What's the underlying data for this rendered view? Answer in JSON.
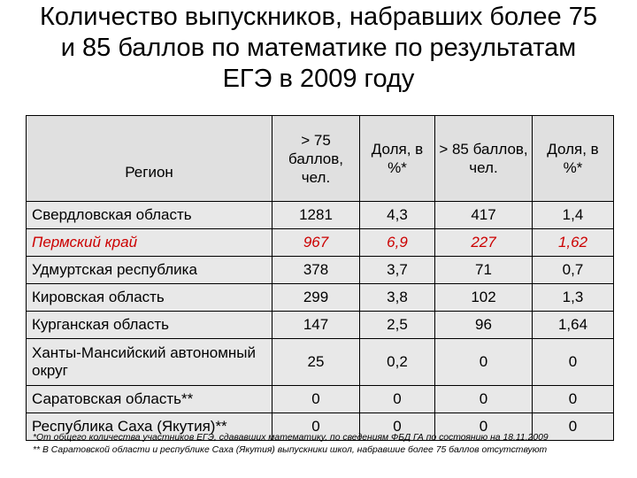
{
  "title": {
    "line1": "Количество выпускников, набравших более 75",
    "line2": "и 85 баллов по математике по результатам",
    "line3": "ЕГЭ в 2009 году"
  },
  "table": {
    "headers": {
      "region": "Регион",
      "over75": "> 75 баллов, чел.",
      "share75": "Доля, в %*",
      "over85": "> 85 баллов, чел.",
      "share85": "Доля, в %*"
    },
    "rows": [
      {
        "region": "Свердловская область",
        "over75": "1281",
        "share75": "4,3",
        "over85": "417",
        "share85": "1,4"
      },
      {
        "region": "Пермский край",
        "over75": "967",
        "share75": "6,9",
        "over85": "227",
        "share85": "1,62"
      },
      {
        "region": "Удмуртская республика",
        "over75": "378",
        "share75": "3,7",
        "over85": "71",
        "share85": "0,7"
      },
      {
        "region": "Кировская область",
        "over75": "299",
        "share75": "3,8",
        "over85": "102",
        "share85": "1,3"
      },
      {
        "region": "Курганская область",
        "over75": "147",
        "share75": "2,5",
        "over85": "96",
        "share85": "1,64"
      },
      {
        "region": "Ханты-Мансийский автономный округ",
        "over75": "25",
        "share75": "0,2",
        "over85": "0",
        "share85": "0"
      },
      {
        "region": "Саратовская область**",
        "over75": "0",
        "share75": "0",
        "over85": "0",
        "share85": "0"
      },
      {
        "region": "Республика Саха (Якутия)**",
        "over75": "0",
        "share75": "0",
        "over85": "0",
        "share85": "0"
      }
    ],
    "highlight_color": "#cc0000"
  },
  "notes": {
    "note1": "*От общего количества участников ЕГЭ, сдававших математику, по сведениям ФБД ГА по состоянию на 18.11.2009",
    "note2": "** В Саратовской области и республике Саха (Якутия) выпускники школ, набравшие более 75 баллов отсутствуют"
  }
}
